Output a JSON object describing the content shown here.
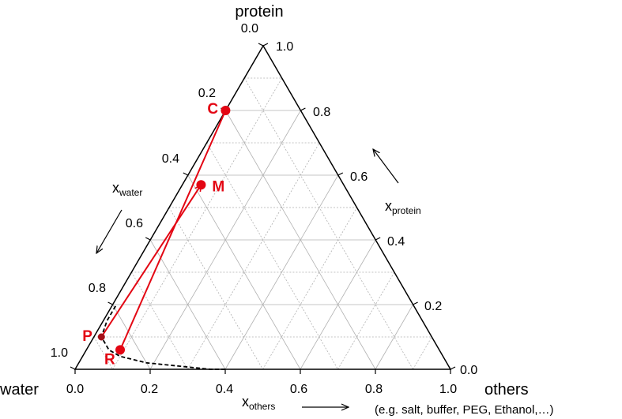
{
  "diagram": {
    "vertex_top": "protein",
    "vertex_left": "water",
    "vertex_right": "others",
    "vertex_right_note": "(e.g. salt, buffer, PEG, Ethanol,…)",
    "axis_water": {
      "main": "x",
      "sub": "water"
    },
    "axis_protein": {
      "main": "x",
      "sub": "protein"
    },
    "axis_others": {
      "main": "x",
      "sub": "others"
    },
    "ticks_bottom": [
      "0.0",
      "0.2",
      "0.4",
      "0.6",
      "0.8",
      "1.0"
    ],
    "ticks_right": [
      "0.0",
      "0.2",
      "0.4",
      "0.6",
      "0.8",
      "1.0"
    ],
    "ticks_left": [
      "0.0",
      "0.2",
      "0.4",
      "0.6",
      "0.8",
      "1.0"
    ],
    "colors": {
      "points": "#e30613",
      "frame": "#000000",
      "grid": "#b0b0b0"
    }
  },
  "chart_data": {
    "type": "ternary",
    "components": [
      "water",
      "protein",
      "others"
    ],
    "grid_step": 0.1,
    "points": [
      {
        "label": "C",
        "water": 0.2,
        "protein": 0.8,
        "others": 0.0
      },
      {
        "label": "M",
        "water": 0.38,
        "protein": 0.57,
        "others": 0.05
      },
      {
        "label": "P",
        "water": 0.88,
        "protein": 0.1,
        "others": 0.02
      },
      {
        "label": "R",
        "water": 0.85,
        "protein": 0.06,
        "others": 0.09
      }
    ],
    "tie_lines": [
      [
        "C",
        "R"
      ],
      [
        "P",
        "M"
      ]
    ],
    "binodal_curve": [
      {
        "water": 0.6,
        "protein": 0.0,
        "others": 0.4
      },
      {
        "water": 0.64,
        "protein": 0.0,
        "others": 0.36
      },
      {
        "water": 0.72,
        "protein": 0.01,
        "others": 0.27
      },
      {
        "water": 0.8,
        "protein": 0.02,
        "others": 0.18
      },
      {
        "water": 0.86,
        "protein": 0.04,
        "others": 0.1
      },
      {
        "water": 0.88,
        "protein": 0.06,
        "others": 0.06
      },
      {
        "water": 0.88,
        "protein": 0.1,
        "others": 0.02
      },
      {
        "water": 0.84,
        "protein": 0.15,
        "others": 0.01
      },
      {
        "water": 0.79,
        "protein": 0.2,
        "others": 0.01
      }
    ]
  }
}
